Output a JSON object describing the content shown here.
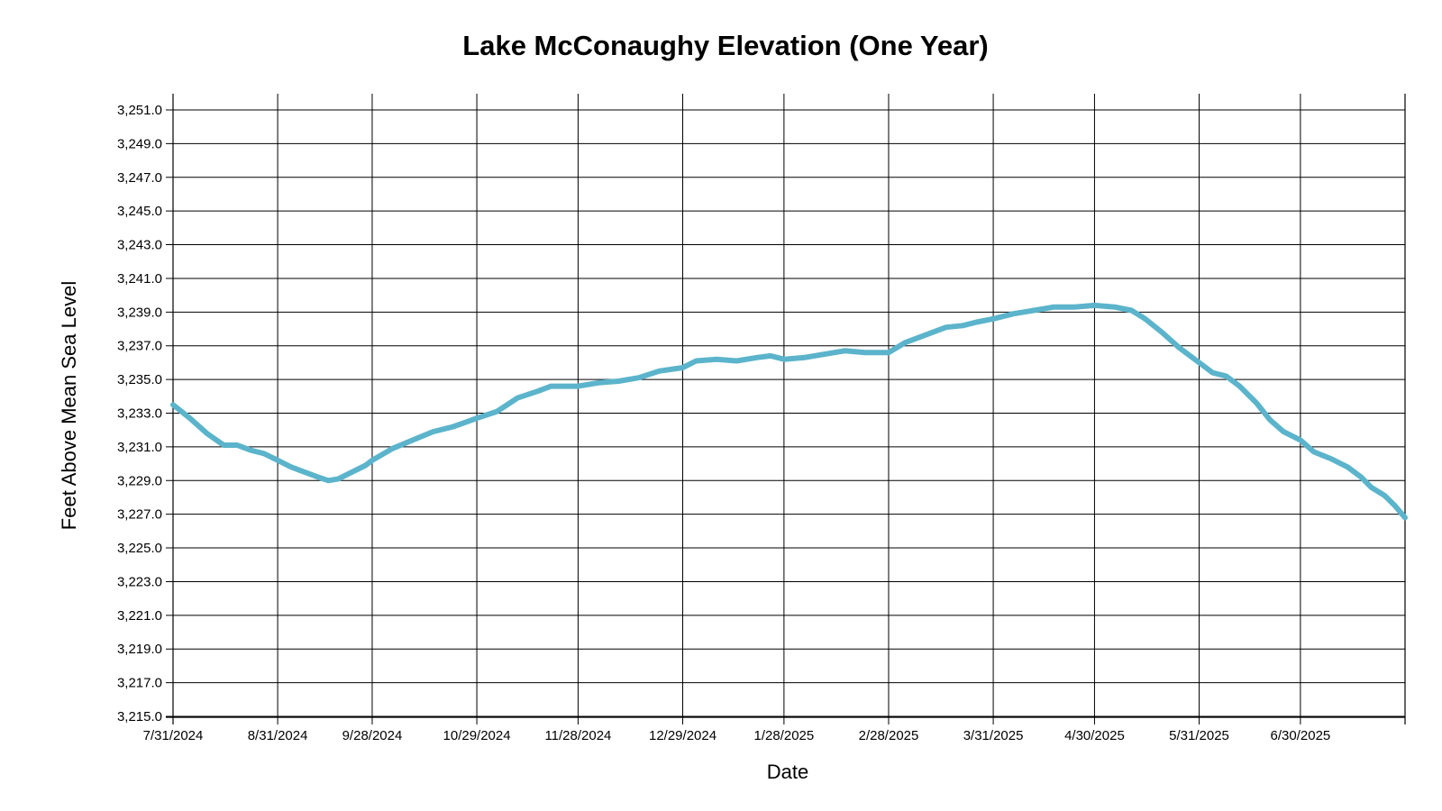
{
  "chart_data": {
    "type": "line",
    "title": "Lake McConaughy Elevation (One Year)",
    "xlabel": "Date",
    "ylabel": "Feet Above Mean Sea Level",
    "x_range": [
      "7/31/2024",
      "7/31/2025"
    ],
    "ylim": [
      3215.0,
      3251.0
    ],
    "y_ticks": [
      "3,215.0",
      "3,217.0",
      "3,219.0",
      "3,221.0",
      "3,223.0",
      "3,225.0",
      "3,227.0",
      "3,229.0",
      "3,231.0",
      "3,233.0",
      "3,235.0",
      "3,237.0",
      "3,239.0",
      "3,241.0",
      "3,243.0",
      "3,245.0",
      "3,247.0",
      "3,249.0",
      "3,251.0"
    ],
    "x_ticks": [
      "7/31/2024",
      "8/31/2024",
      "9/28/2024",
      "10/29/2024",
      "11/28/2024",
      "12/29/2024",
      "1/28/2025",
      "2/28/2025",
      "3/31/2025",
      "4/30/2025",
      "5/31/2025",
      "6/30/2025"
    ],
    "grid": true,
    "legend": "none",
    "series": [
      {
        "color": "#5bb4cb",
        "points": [
          [
            "7/31/2024",
            3233.5
          ],
          [
            "8/5/2024",
            3232.7
          ],
          [
            "8/10/2024",
            3231.8
          ],
          [
            "8/15/2024",
            3231.1
          ],
          [
            "8/19/2024",
            3231.1
          ],
          [
            "8/23/2024",
            3230.8
          ],
          [
            "8/27/2024",
            3230.6
          ],
          [
            "8/31/2024",
            3230.2
          ],
          [
            "9/4/2024",
            3229.8
          ],
          [
            "9/8/2024",
            3229.5
          ],
          [
            "9/12/2024",
            3229.2
          ],
          [
            "9/15/2024",
            3229.0
          ],
          [
            "9/18/2024",
            3229.1
          ],
          [
            "9/22/2024",
            3229.5
          ],
          [
            "9/26/2024",
            3229.9
          ],
          [
            "9/28/2024",
            3230.2
          ],
          [
            "10/4/2024",
            3230.9
          ],
          [
            "10/10/2024",
            3231.4
          ],
          [
            "10/16/2024",
            3231.9
          ],
          [
            "10/22/2024",
            3232.2
          ],
          [
            "10/29/2024",
            3232.7
          ],
          [
            "11/4/2024",
            3233.1
          ],
          [
            "11/10/2024",
            3233.9
          ],
          [
            "11/16/2024",
            3234.3
          ],
          [
            "11/20/2024",
            3234.6
          ],
          [
            "11/28/2024",
            3234.6
          ],
          [
            "12/4/2024",
            3234.8
          ],
          [
            "12/10/2024",
            3234.9
          ],
          [
            "12/16/2024",
            3235.1
          ],
          [
            "12/22/2024",
            3235.5
          ],
          [
            "12/29/2024",
            3235.7
          ],
          [
            "1/2/2025",
            3236.1
          ],
          [
            "1/8/2025",
            3236.2
          ],
          [
            "1/14/2025",
            3236.1
          ],
          [
            "1/20/2025",
            3236.3
          ],
          [
            "1/24/2025",
            3236.4
          ],
          [
            "1/28/2025",
            3236.2
          ],
          [
            "2/3/2025",
            3236.3
          ],
          [
            "2/9/2025",
            3236.5
          ],
          [
            "2/15/2025",
            3236.7
          ],
          [
            "2/21/2025",
            3236.6
          ],
          [
            "2/28/2025",
            3236.6
          ],
          [
            "3/5/2025",
            3237.2
          ],
          [
            "3/9/2025",
            3237.5
          ],
          [
            "3/13/2025",
            3237.8
          ],
          [
            "3/17/2025",
            3238.1
          ],
          [
            "3/22/2025",
            3238.2
          ],
          [
            "3/26/2025",
            3238.4
          ],
          [
            "3/31/2025",
            3238.6
          ],
          [
            "4/6/2025",
            3238.9
          ],
          [
            "4/12/2025",
            3239.1
          ],
          [
            "4/18/2025",
            3239.3
          ],
          [
            "4/24/2025",
            3239.3
          ],
          [
            "4/30/2025",
            3239.4
          ],
          [
            "5/6/2025",
            3239.3
          ],
          [
            "5/11/2025",
            3239.1
          ],
          [
            "5/15/2025",
            3238.6
          ],
          [
            "5/20/2025",
            3237.8
          ],
          [
            "5/25/2025",
            3236.9
          ],
          [
            "5/31/2025",
            3236.0
          ],
          [
            "6/4/2025",
            3235.4
          ],
          [
            "6/8/2025",
            3235.2
          ],
          [
            "6/12/2025",
            3234.6
          ],
          [
            "6/17/2025",
            3233.6
          ],
          [
            "6/21/2025",
            3232.6
          ],
          [
            "6/25/2025",
            3231.9
          ],
          [
            "6/30/2025",
            3231.4
          ],
          [
            "7/4/2025",
            3230.7
          ],
          [
            "7/9/2025",
            3230.3
          ],
          [
            "7/14/2025",
            3229.8
          ],
          [
            "7/18/2025",
            3229.2
          ],
          [
            "7/21/2025",
            3228.6
          ],
          [
            "7/25/2025",
            3228.1
          ],
          [
            "7/28/2025",
            3227.5
          ],
          [
            "7/31/2025",
            3226.8
          ]
        ]
      }
    ]
  }
}
